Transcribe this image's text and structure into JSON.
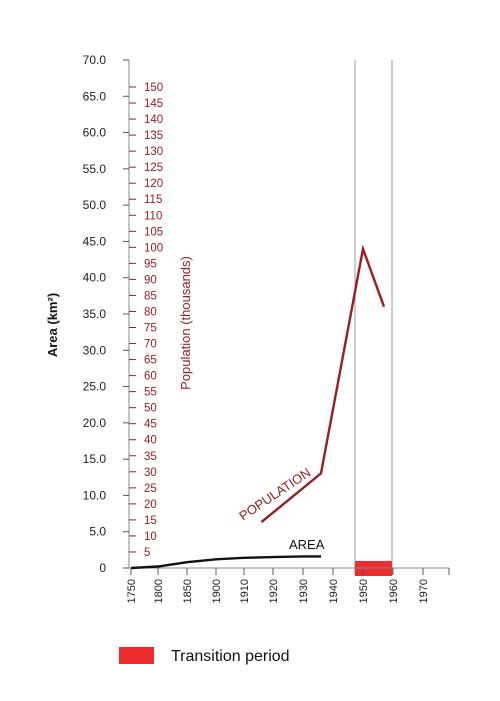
{
  "chart_data": {
    "type": "line",
    "title": "",
    "x": {
      "ticks": [
        1750,
        1800,
        1850,
        1900,
        1910,
        1920,
        1930,
        1940,
        1950,
        1960,
        1970
      ],
      "tick_labels": [
        "1750",
        "1800",
        "1850",
        "1900",
        "1910",
        "1920",
        "1930",
        "1940",
        "1950",
        "1960",
        "1970"
      ]
    },
    "y_left": {
      "label": "Area (km²)",
      "range": [
        0,
        70
      ],
      "ticks": [
        0,
        5,
        10,
        15,
        20,
        25,
        30,
        35,
        40,
        45,
        50,
        55,
        60,
        65,
        70
      ],
      "tick_labels": [
        "0",
        "5.0",
        "10.0",
        "15.0",
        "20.0",
        "25.0",
        "30.0",
        "35.0",
        "40.0",
        "45.0",
        "50.0",
        "55.0",
        "60.0",
        "65.0",
        "70.0"
      ]
    },
    "y_right": {
      "label": "Population (thousands)",
      "range": [
        0,
        150
      ],
      "ticks": [
        5,
        10,
        15,
        20,
        25,
        30,
        35,
        40,
        45,
        50,
        55,
        60,
        65,
        70,
        75,
        80,
        85,
        90,
        95,
        100,
        105,
        110,
        115,
        120,
        125,
        130,
        135,
        140,
        145,
        150
      ],
      "tick_labels": [
        "5",
        "10",
        "15",
        "20",
        "25",
        "30",
        "35",
        "40",
        "45",
        "50",
        "55",
        "60",
        "65",
        "70",
        "75",
        "80",
        "85",
        "90",
        "95",
        "100",
        "105",
        "110",
        "115",
        "120",
        "125",
        "130",
        "135",
        "140",
        "145",
        "150"
      ]
    },
    "series": [
      {
        "name": "AREA",
        "axis": "left",
        "color": "#111111",
        "points": [
          [
            1750,
            0
          ],
          [
            1800,
            0.2
          ],
          [
            1850,
            0.8
          ],
          [
            1900,
            1.2
          ],
          [
            1910,
            1.4
          ],
          [
            1920,
            1.5
          ],
          [
            1930,
            1.6
          ],
          [
            1936,
            1.6
          ]
        ]
      },
      {
        "name": "POPULATION",
        "axis": "right",
        "color": "#9b1c23",
        "points": [
          [
            1916,
            14.3
          ],
          [
            1936,
            29.5
          ],
          [
            1950,
            99.5
          ],
          [
            1957,
            81.5
          ]
        ]
      }
    ],
    "transition_period": {
      "label": "Transition period",
      "start": 1947,
      "end": 1960,
      "color": "#ed2d2d"
    },
    "grid": false,
    "legend_position": "bottom-left"
  }
}
